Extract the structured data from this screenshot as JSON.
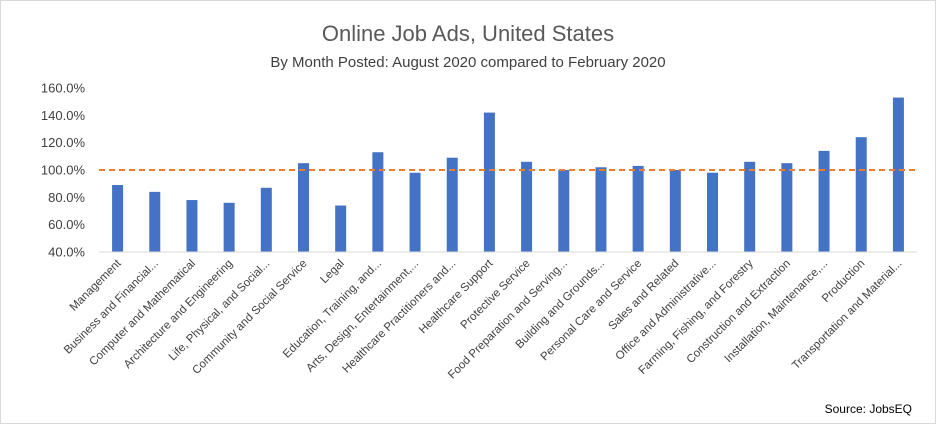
{
  "chart_data": {
    "type": "bar",
    "title": "Online Job Ads, United States",
    "subtitle": "By Month Posted: August 2020 compared to February 2020",
    "source": "Source: JobsEQ",
    "ylim": [
      40,
      160
    ],
    "yticks": [
      "40.0%",
      "60.0%",
      "80.0%",
      "100.0%",
      "120.0%",
      "140.0%",
      "160.0%"
    ],
    "ytick_values": [
      40,
      60,
      80,
      100,
      120,
      140,
      160
    ],
    "reference_line": 100,
    "colors": {
      "bar": "#4472c4",
      "reference": "#ed7d31"
    },
    "grid": false,
    "categories": [
      "Management",
      "Business and Financial...",
      "Computer and Mathematical",
      "Architecture and Engineering",
      "Life, Physical, and Social...",
      "Community and Social Service",
      "Legal",
      "Education, Training, and...",
      "Arts, Design, Entertainment,...",
      "Healthcare Practitioners and...",
      "Healthcare Support",
      "Protective Service",
      "Food Preparation and Serving...",
      "Building and Grounds...",
      "Personal Care and Service",
      "Sales and Related",
      "Office and Administrative...",
      "Farming, Fishing, and Forestry",
      "Construction and Extraction",
      "Installation, Maintenance,...",
      "Production",
      "Transportation and Material..."
    ],
    "values": [
      89,
      84,
      78,
      76,
      87,
      105,
      74,
      113,
      98,
      109,
      142,
      106,
      100,
      102,
      103,
      100,
      98,
      106,
      105,
      114,
      124,
      153
    ]
  }
}
